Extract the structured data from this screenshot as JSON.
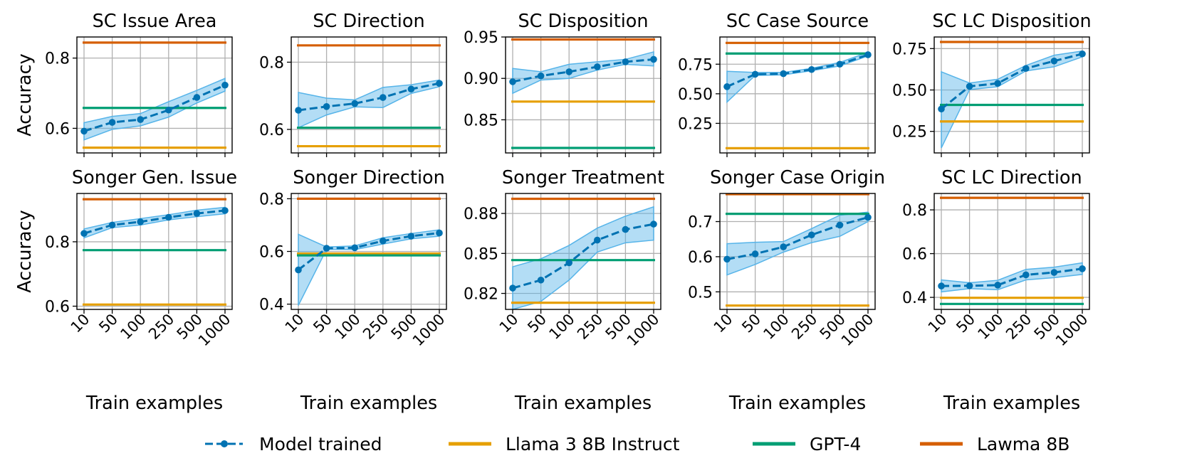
{
  "chart_data": [
    {
      "type": "line",
      "title": "SC Issue Area",
      "ylabel": "Accuracy",
      "xlabel": "Train examples",
      "ylim": [
        0.53,
        0.86
      ],
      "yticks": [
        0.6,
        0.8
      ],
      "ytick_labels": [
        "0.6",
        "0.8"
      ],
      "show_xticks": false,
      "categories": [
        "10",
        "50",
        "100",
        "250",
        "500",
        "1000"
      ],
      "series": [
        {
          "name": "Model trained",
          "values": [
            0.592,
            0.617,
            0.625,
            0.652,
            0.688,
            0.723
          ],
          "band_low": [
            0.567,
            0.597,
            0.607,
            0.632,
            0.672,
            0.706
          ],
          "band_high": [
            0.616,
            0.634,
            0.642,
            0.676,
            0.708,
            0.742
          ]
        }
      ],
      "references": [
        {
          "name": "Llama 3 8B Instruct",
          "value": 0.545
        },
        {
          "name": "GPT-4",
          "value": 0.658
        },
        {
          "name": "Lawma 8B",
          "value": 0.844
        }
      ]
    },
    {
      "type": "line",
      "title": "SC Direction",
      "ylabel": "",
      "xlabel": "Train examples",
      "ylim": [
        0.53,
        0.875
      ],
      "yticks": [
        0.6,
        0.8
      ],
      "ytick_labels": [
        "0.6",
        "0.8"
      ],
      "show_xticks": false,
      "categories": [
        "10",
        "50",
        "100",
        "250",
        "500",
        "1000"
      ],
      "series": [
        {
          "name": "Model trained",
          "values": [
            0.657,
            0.668,
            0.677,
            0.695,
            0.72,
            0.737
          ],
          "band_low": [
            0.605,
            0.643,
            0.667,
            0.665,
            0.707,
            0.727
          ],
          "band_high": [
            0.71,
            0.693,
            0.688,
            0.725,
            0.733,
            0.747
          ]
        }
      ],
      "references": [
        {
          "name": "Llama 3 8B Instruct",
          "value": 0.55
        },
        {
          "name": "GPT-4",
          "value": 0.605
        },
        {
          "name": "Lawma 8B",
          "value": 0.85
        }
      ]
    },
    {
      "type": "line",
      "title": "SC Disposition",
      "ylabel": "",
      "xlabel": "Train examples",
      "ylim": [
        0.81,
        0.95
      ],
      "yticks": [
        0.85,
        0.9,
        0.95
      ],
      "ytick_labels": [
        "0.85",
        "0.90",
        "0.95"
      ],
      "show_xticks": false,
      "categories": [
        "10",
        "50",
        "100",
        "250",
        "500",
        "1000"
      ],
      "series": [
        {
          "name": "Model trained",
          "values": [
            0.896,
            0.903,
            0.908,
            0.914,
            0.92,
            0.923
          ],
          "band_low": [
            0.882,
            0.898,
            0.9,
            0.91,
            0.917,
            0.915
          ],
          "band_high": [
            0.912,
            0.908,
            0.917,
            0.92,
            0.923,
            0.932
          ]
        }
      ],
      "references": [
        {
          "name": "Llama 3 8B Instruct",
          "value": 0.872
        },
        {
          "name": "GPT-4",
          "value": 0.816
        },
        {
          "name": "Lawma 8B",
          "value": 0.947
        }
      ]
    },
    {
      "type": "line",
      "title": "SC Case Source",
      "ylabel": "",
      "xlabel": "Train examples",
      "ylim": [
        0.0,
        0.98
      ],
      "yticks": [
        0.25,
        0.5,
        0.75
      ],
      "ytick_labels": [
        "0.25",
        "0.50",
        "0.75"
      ],
      "show_xticks": false,
      "categories": [
        "10",
        "50",
        "100",
        "250",
        "500",
        "1000"
      ],
      "series": [
        {
          "name": "Model trained",
          "values": [
            0.56,
            0.665,
            0.67,
            0.705,
            0.75,
            0.83
          ],
          "band_low": [
            0.43,
            0.655,
            0.66,
            0.695,
            0.735,
            0.82
          ],
          "band_high": [
            0.69,
            0.68,
            0.68,
            0.715,
            0.765,
            0.85
          ]
        }
      ],
      "references": [
        {
          "name": "Llama 3 8B Instruct",
          "value": 0.04
        },
        {
          "name": "GPT-4",
          "value": 0.84
        },
        {
          "name": "Lawma 8B",
          "value": 0.93
        }
      ]
    },
    {
      "type": "line",
      "title": "SC LC Disposition",
      "ylabel": "",
      "xlabel": "Train examples",
      "ylim": [
        0.12,
        0.82
      ],
      "yticks": [
        0.25,
        0.5,
        0.75
      ],
      "ytick_labels": [
        "0.25",
        "0.50",
        "0.75"
      ],
      "show_xticks": false,
      "categories": [
        "10",
        "50",
        "100",
        "250",
        "500",
        "1000"
      ],
      "series": [
        {
          "name": "Model trained",
          "values": [
            0.385,
            0.522,
            0.54,
            0.63,
            0.675,
            0.718
          ],
          "band_low": [
            0.15,
            0.502,
            0.52,
            0.615,
            0.64,
            0.7
          ],
          "band_high": [
            0.61,
            0.542,
            0.565,
            0.648,
            0.71,
            0.735
          ]
        }
      ],
      "references": [
        {
          "name": "Llama 3 8B Instruct",
          "value": 0.31
        },
        {
          "name": "GPT-4",
          "value": 0.41
        },
        {
          "name": "Lawma 8B",
          "value": 0.79
        }
      ]
    },
    {
      "type": "line",
      "title": "Songer Gen. Issue",
      "ylabel": "Accuracy",
      "xlabel": "Train examples",
      "ylim": [
        0.59,
        0.95
      ],
      "yticks": [
        0.6,
        0.8
      ],
      "ytick_labels": [
        "0.6",
        "0.8"
      ],
      "show_xticks": true,
      "categories": [
        "10",
        "50",
        "100",
        "250",
        "500",
        "1000"
      ],
      "series": [
        {
          "name": "Model trained",
          "values": [
            0.826,
            0.852,
            0.862,
            0.876,
            0.888,
            0.897
          ],
          "band_low": [
            0.812,
            0.844,
            0.852,
            0.868,
            0.878,
            0.887
          ],
          "band_high": [
            0.84,
            0.86,
            0.872,
            0.884,
            0.898,
            0.907
          ]
        }
      ],
      "references": [
        {
          "name": "Llama 3 8B Instruct",
          "value": 0.605
        },
        {
          "name": "GPT-4",
          "value": 0.774
        },
        {
          "name": "Lawma 8B",
          "value": 0.932
        }
      ]
    },
    {
      "type": "line",
      "title": "Songer Direction",
      "ylabel": "",
      "xlabel": "Train examples",
      "ylim": [
        0.38,
        0.82
      ],
      "yticks": [
        0.4,
        0.6,
        0.8
      ],
      "ytick_labels": [
        "0.4",
        "0.6",
        "0.8"
      ],
      "show_xticks": true,
      "categories": [
        "10",
        "50",
        "100",
        "250",
        "500",
        "1000"
      ],
      "series": [
        {
          "name": "Model trained",
          "values": [
            0.53,
            0.612,
            0.614,
            0.64,
            0.658,
            0.67
          ],
          "band_low": [
            0.395,
            0.608,
            0.607,
            0.628,
            0.648,
            0.658
          ],
          "band_high": [
            0.665,
            0.617,
            0.621,
            0.652,
            0.668,
            0.682
          ]
        }
      ],
      "references": [
        {
          "name": "Llama 3 8B Instruct",
          "value": 0.592
        },
        {
          "name": "GPT-4",
          "value": 0.585
        },
        {
          "name": "Lawma 8B",
          "value": 0.8
        }
      ]
    },
    {
      "type": "line",
      "title": "Songer Treatment",
      "ylabel": "",
      "xlabel": "Train examples",
      "ylim": [
        0.808,
        0.895
      ],
      "yticks": [
        0.82,
        0.85,
        0.88
      ],
      "ytick_labels": [
        "0.82",
        "0.85",
        "0.88"
      ],
      "show_xticks": true,
      "categories": [
        "10",
        "50",
        "100",
        "250",
        "500",
        "1000"
      ],
      "series": [
        {
          "name": "Model trained",
          "values": [
            0.824,
            0.83,
            0.843,
            0.86,
            0.868,
            0.872
          ],
          "band_low": [
            0.808,
            0.814,
            0.83,
            0.851,
            0.858,
            0.86
          ],
          "band_high": [
            0.84,
            0.846,
            0.856,
            0.869,
            0.878,
            0.885
          ]
        }
      ],
      "references": [
        {
          "name": "Llama 3 8B Instruct",
          "value": 0.813
        },
        {
          "name": "GPT-4",
          "value": 0.845
        },
        {
          "name": "Lawma 8B",
          "value": 0.891
        }
      ]
    },
    {
      "type": "line",
      "title": "Songer Case Origin",
      "ylabel": "",
      "xlabel": "Train examples",
      "ylim": [
        0.45,
        0.78
      ],
      "yticks": [
        0.5,
        0.6,
        0.7
      ],
      "ytick_labels": [
        "0.5",
        "0.6",
        "0.7"
      ],
      "show_xticks": true,
      "categories": [
        "10",
        "50",
        "100",
        "250",
        "500",
        "1000"
      ],
      "series": [
        {
          "name": "Model trained",
          "values": [
            0.593,
            0.608,
            0.628,
            0.662,
            0.69,
            0.712
          ],
          "band_low": [
            0.548,
            0.578,
            0.613,
            0.64,
            0.658,
            0.7
          ],
          "band_high": [
            0.637,
            0.641,
            0.643,
            0.68,
            0.718,
            0.727
          ]
        }
      ],
      "references": [
        {
          "name": "Llama 3 8B Instruct",
          "value": 0.461
        },
        {
          "name": "GPT-4",
          "value": 0.722
        },
        {
          "name": "Lawma 8B",
          "value": 0.778
        }
      ]
    },
    {
      "type": "line",
      "title": "SC LC Direction",
      "ylabel": "",
      "xlabel": "Train examples",
      "ylim": [
        0.345,
        0.875
      ],
      "yticks": [
        0.4,
        0.6,
        0.8
      ],
      "ytick_labels": [
        "0.4",
        "0.6",
        "0.8"
      ],
      "show_xticks": true,
      "categories": [
        "10",
        "50",
        "100",
        "250",
        "500",
        "1000"
      ],
      "series": [
        {
          "name": "Model trained",
          "values": [
            0.452,
            0.453,
            0.456,
            0.503,
            0.514,
            0.531
          ],
          "band_low": [
            0.425,
            0.44,
            0.435,
            0.48,
            0.49,
            0.505
          ],
          "band_high": [
            0.48,
            0.467,
            0.478,
            0.528,
            0.538,
            0.558
          ]
        }
      ],
      "references": [
        {
          "name": "Llama 3 8B Instruct",
          "value": 0.398
        },
        {
          "name": "GPT-4",
          "value": 0.37
        },
        {
          "name": "Lawma 8B",
          "value": 0.855
        }
      ]
    }
  ],
  "legend": {
    "items": [
      {
        "name": "Model trained",
        "style": "dashed-marker",
        "color": "#0072B2"
      },
      {
        "name": "Llama 3 8B Instruct",
        "style": "solid",
        "color": "#E69F00"
      },
      {
        "name": "GPT-4",
        "style": "solid",
        "color": "#009E73"
      },
      {
        "name": "Lawma 8B",
        "style": "solid",
        "color": "#D55E00"
      }
    ]
  },
  "colors": {
    "model": "#0072B2",
    "band": "#56B4E9",
    "Llama 3 8B Instruct": "#E69F00",
    "GPT-4": "#009E73",
    "Lawma 8B": "#D55E00",
    "grid": "#b0b0b0"
  }
}
